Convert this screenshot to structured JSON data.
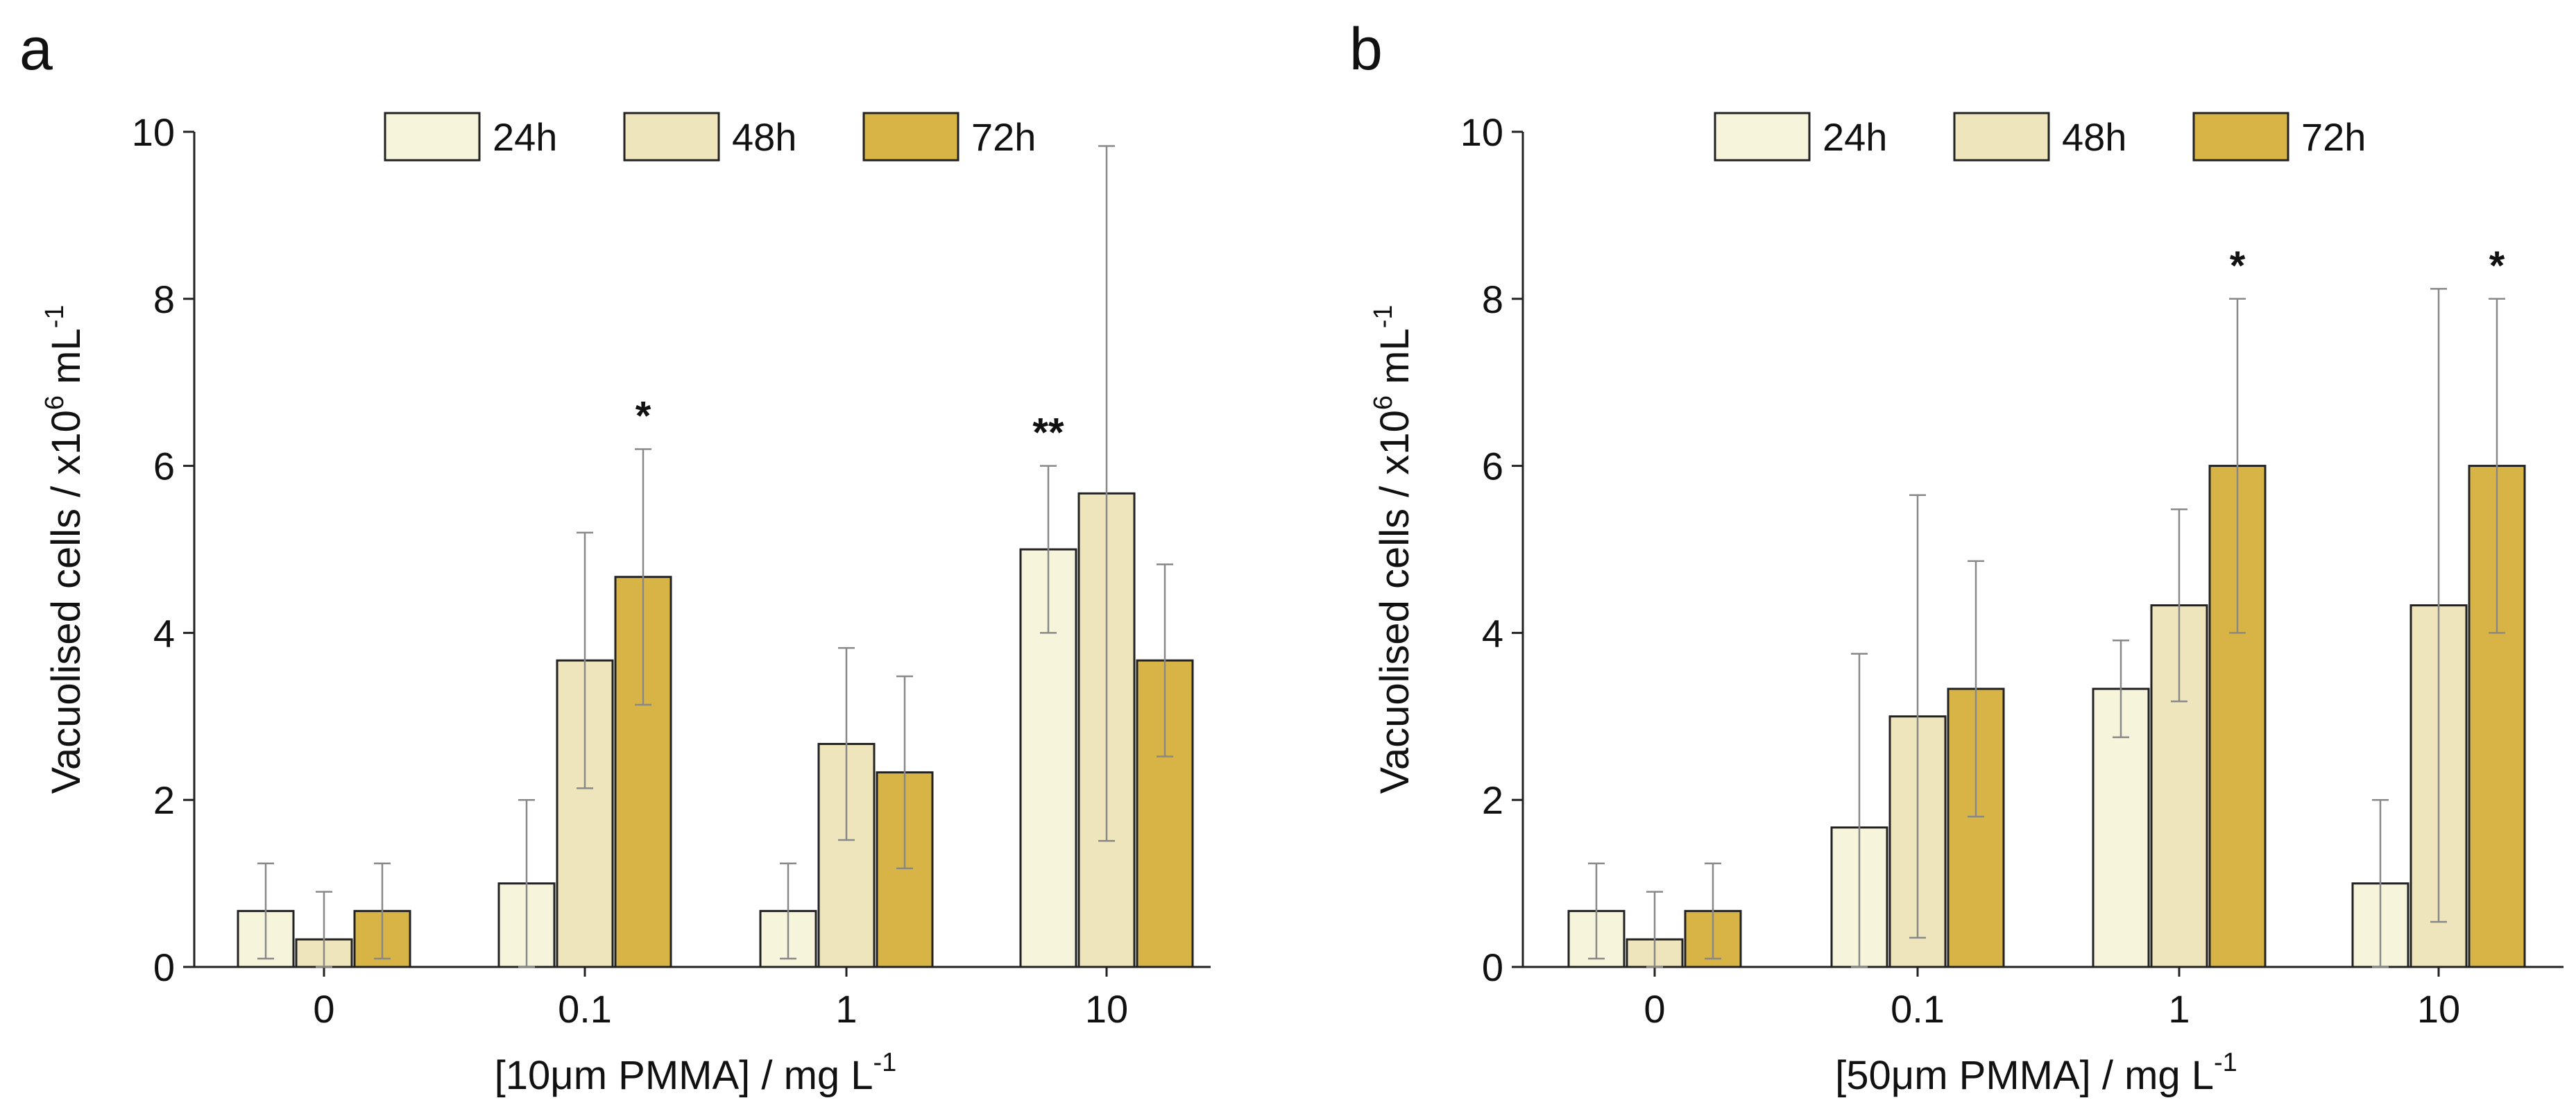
{
  "colors": {
    "h24": "#f6f4db",
    "h48": "#eee5bd",
    "h72": "#d8b446",
    "stroke": "#222222",
    "errorbar": "#888888"
  },
  "chart_data": [
    {
      "type": "bar",
      "panel": "a",
      "categories": [
        "0",
        "0.1",
        "1",
        "10"
      ],
      "series": [
        {
          "name": "24h",
          "values": [
            0.67,
            1.0,
            0.67,
            5.0
          ],
          "errors": [
            0.57,
            1.0,
            0.57,
            1.0
          ]
        },
        {
          "name": "48h",
          "values": [
            0.33,
            3.67,
            2.67,
            5.67
          ],
          "errors": [
            0.57,
            1.53,
            1.15,
            4.16
          ]
        },
        {
          "name": "72h",
          "values": [
            0.67,
            4.67,
            2.33,
            3.67
          ],
          "errors": [
            0.57,
            1.53,
            1.15,
            1.15
          ]
        }
      ],
      "significance": [
        {
          "category": "0.1",
          "series": "72h",
          "label": "*"
        },
        {
          "category": "10",
          "series": "24h",
          "label": "**"
        }
      ],
      "xlabel": "[10μm PMMA] / mg L",
      "xlabel_sup": "-1",
      "ylabel": "Vacuolised cells / x10",
      "ylabel_sup1": "6",
      "ylabel_mid": " mL",
      "ylabel_sup2": "-1",
      "ylim": [
        0,
        10
      ],
      "yticks": [
        "0",
        "2",
        "4",
        "6",
        "8",
        "10"
      ],
      "legend_position": "top"
    },
    {
      "type": "bar",
      "panel": "b",
      "categories": [
        "0",
        "0.1",
        "1",
        "10"
      ],
      "series": [
        {
          "name": "24h",
          "values": [
            0.67,
            1.67,
            3.33,
            1.0
          ],
          "errors": [
            0.57,
            2.08,
            0.58,
            1.0
          ]
        },
        {
          "name": "48h",
          "values": [
            0.33,
            3.0,
            4.33,
            4.33
          ],
          "errors": [
            0.57,
            2.65,
            1.15,
            3.79
          ]
        },
        {
          "name": "72h",
          "values": [
            0.67,
            3.33,
            6.0,
            6.0
          ],
          "errors": [
            0.57,
            1.53,
            2.0,
            2.0
          ]
        }
      ],
      "significance": [
        {
          "category": "1",
          "series": "72h",
          "label": "*"
        },
        {
          "category": "10",
          "series": "72h",
          "label": "*"
        }
      ],
      "xlabel": "[50μm PMMA] / mg L",
      "xlabel_sup": "-1",
      "ylabel": "Vacuolised cells / x10",
      "ylabel_sup1": "6",
      "ylabel_mid": " mL",
      "ylabel_sup2": "-1",
      "ylim": [
        0,
        10
      ],
      "yticks": [
        "0",
        "2",
        "4",
        "6",
        "8",
        "10"
      ],
      "legend_position": "top"
    }
  ]
}
